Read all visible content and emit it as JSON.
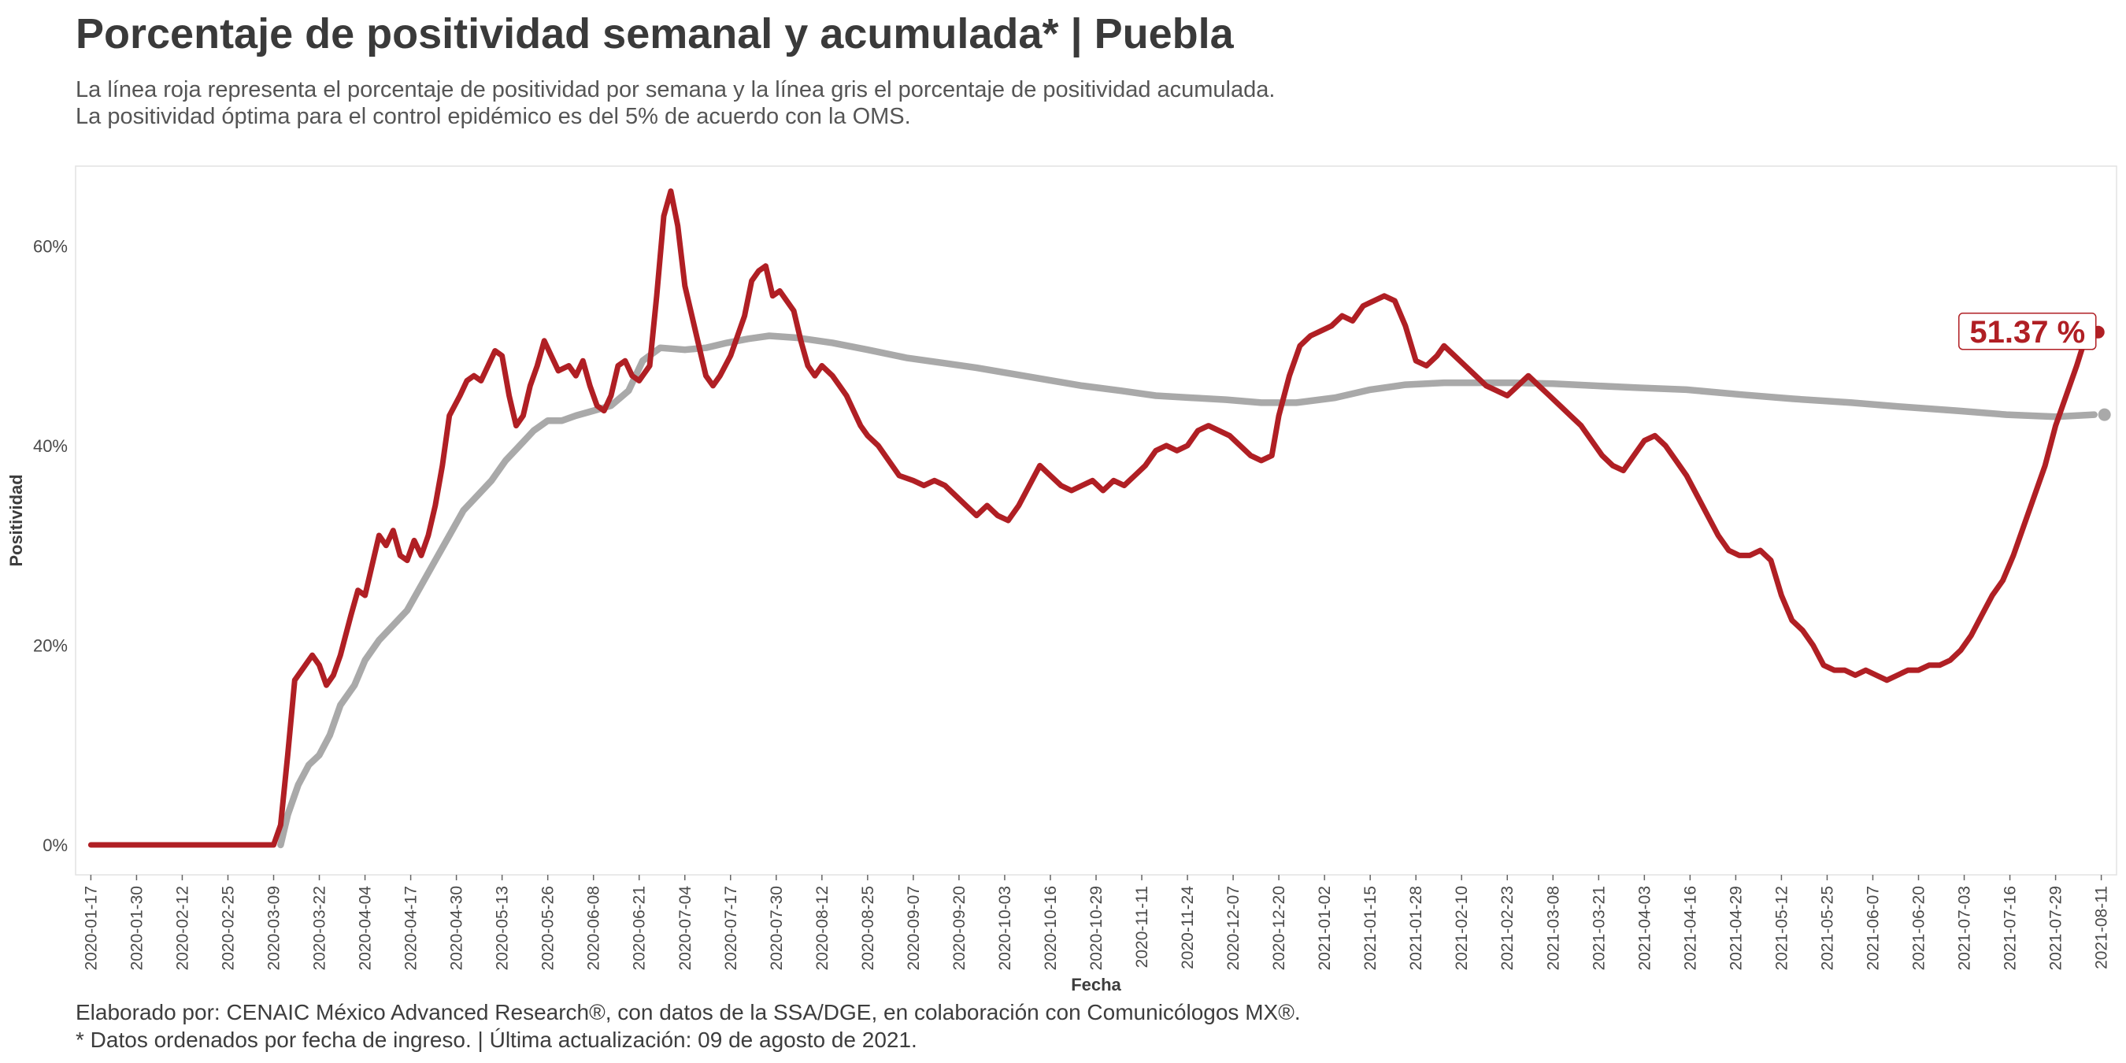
{
  "title": "Porcentaje de positividad semanal y acumulada* | Puebla",
  "subtitle_1": "La línea roja representa el porcentaje de positividad por semana y la línea gris el porcentaje de positividad acumulada.",
  "subtitle_2": "La positividad óptima para el control epidémico es del 5% de acuerdo con la OMS.",
  "caption_1": "Elaborado por: CENAIC México Advanced Research®, con datos de la SSA/DGE, en colaboración con Comunicólogos MX®.",
  "caption_2": "* Datos ordenados por fecha de ingreso. | Última actualización: 09 de agosto de 2021.",
  "colors": {
    "weekly": "#b01f24",
    "cumulative": "#a9a9a9",
    "panel_border": "#e2e2e2"
  },
  "chart_data": {
    "type": "line",
    "xlabel": "Fecha",
    "ylabel": "Positividad",
    "x_range": [
      "2020-01-14",
      "2021-08-14"
    ],
    "ylim": [
      -3,
      68
    ],
    "y_ticks": [
      0,
      20,
      40,
      60
    ],
    "y_tick_labels": [
      "0%",
      "20%",
      "40%",
      "60%"
    ],
    "x_ticks": [
      "2020-01-17",
      "2020-01-30",
      "2020-02-12",
      "2020-02-25",
      "2020-03-09",
      "2020-03-22",
      "2020-04-04",
      "2020-04-17",
      "2020-04-30",
      "2020-05-13",
      "2020-05-26",
      "2020-06-08",
      "2020-06-21",
      "2020-07-04",
      "2020-07-17",
      "2020-07-30",
      "2020-08-12",
      "2020-08-25",
      "2020-09-07",
      "2020-09-20",
      "2020-10-03",
      "2020-10-16",
      "2020-10-29",
      "2020-11-11",
      "2020-11-24",
      "2020-12-07",
      "2020-12-20",
      "2021-01-02",
      "2021-01-15",
      "2021-01-28",
      "2021-02-10",
      "2021-02-23",
      "2021-03-08",
      "2021-03-21",
      "2021-04-03",
      "2021-04-16",
      "2021-04-29",
      "2021-05-12",
      "2021-05-25",
      "2021-06-07",
      "2021-06-20",
      "2021-07-03",
      "2021-07-16",
      "2021-07-29",
      "2021-08-11"
    ],
    "grid": false,
    "series": [
      {
        "key": "weekly",
        "points": [
          [
            "2020-01-17",
            0
          ],
          [
            "2020-03-09",
            0
          ],
          [
            "2020-03-11",
            2
          ],
          [
            "2020-03-13",
            9
          ],
          [
            "2020-03-15",
            16.5
          ],
          [
            "2020-03-18",
            18
          ],
          [
            "2020-03-20",
            19
          ],
          [
            "2020-03-22",
            18
          ],
          [
            "2020-03-24",
            16
          ],
          [
            "2020-03-26",
            17
          ],
          [
            "2020-03-28",
            19
          ],
          [
            "2020-03-31",
            23
          ],
          [
            "2020-04-02",
            25.5
          ],
          [
            "2020-04-04",
            25
          ],
          [
            "2020-04-06",
            28
          ],
          [
            "2020-04-08",
            31
          ],
          [
            "2020-04-10",
            30
          ],
          [
            "2020-04-12",
            31.5
          ],
          [
            "2020-04-14",
            29
          ],
          [
            "2020-04-16",
            28.5
          ],
          [
            "2020-04-18",
            30.5
          ],
          [
            "2020-04-20",
            29
          ],
          [
            "2020-04-22",
            31
          ],
          [
            "2020-04-24",
            34
          ],
          [
            "2020-04-26",
            38
          ],
          [
            "2020-04-28",
            43
          ],
          [
            "2020-05-01",
            45
          ],
          [
            "2020-05-03",
            46.5
          ],
          [
            "2020-05-05",
            47
          ],
          [
            "2020-05-07",
            46.5
          ],
          [
            "2020-05-09",
            48
          ],
          [
            "2020-05-11",
            49.5
          ],
          [
            "2020-05-13",
            49
          ],
          [
            "2020-05-15",
            45
          ],
          [
            "2020-05-17",
            42
          ],
          [
            "2020-05-19",
            43
          ],
          [
            "2020-05-21",
            46
          ],
          [
            "2020-05-23",
            48
          ],
          [
            "2020-05-25",
            50.5
          ],
          [
            "2020-05-27",
            49
          ],
          [
            "2020-05-29",
            47.5
          ],
          [
            "2020-06-01",
            48
          ],
          [
            "2020-06-03",
            47
          ],
          [
            "2020-06-05",
            48.5
          ],
          [
            "2020-06-07",
            46
          ],
          [
            "2020-06-09",
            44
          ],
          [
            "2020-06-11",
            43.5
          ],
          [
            "2020-06-13",
            45
          ],
          [
            "2020-06-15",
            48
          ],
          [
            "2020-06-17",
            48.5
          ],
          [
            "2020-06-19",
            47
          ],
          [
            "2020-06-21",
            46.5
          ],
          [
            "2020-06-24",
            48
          ],
          [
            "2020-06-26",
            55
          ],
          [
            "2020-06-28",
            63
          ],
          [
            "2020-06-30",
            65.5
          ],
          [
            "2020-07-02",
            62
          ],
          [
            "2020-07-04",
            56
          ],
          [
            "2020-07-06",
            53
          ],
          [
            "2020-07-08",
            50
          ],
          [
            "2020-07-10",
            47
          ],
          [
            "2020-07-12",
            46
          ],
          [
            "2020-07-14",
            47
          ],
          [
            "2020-07-17",
            49
          ],
          [
            "2020-07-19",
            51
          ],
          [
            "2020-07-21",
            53
          ],
          [
            "2020-07-23",
            56.5
          ],
          [
            "2020-07-25",
            57.5
          ],
          [
            "2020-07-27",
            58
          ],
          [
            "2020-07-29",
            55
          ],
          [
            "2020-07-31",
            55.5
          ],
          [
            "2020-08-02",
            54.5
          ],
          [
            "2020-08-04",
            53.5
          ],
          [
            "2020-08-06",
            50.5
          ],
          [
            "2020-08-08",
            48
          ],
          [
            "2020-08-10",
            47
          ],
          [
            "2020-08-12",
            48
          ],
          [
            "2020-08-15",
            47
          ],
          [
            "2020-08-17",
            46
          ],
          [
            "2020-08-19",
            45
          ],
          [
            "2020-08-21",
            43.5
          ],
          [
            "2020-08-23",
            42
          ],
          [
            "2020-08-25",
            41
          ],
          [
            "2020-08-28",
            40
          ],
          [
            "2020-08-31",
            38.5
          ],
          [
            "2020-09-03",
            37
          ],
          [
            "2020-09-07",
            36.5
          ],
          [
            "2020-09-10",
            36
          ],
          [
            "2020-09-13",
            36.5
          ],
          [
            "2020-09-16",
            36
          ],
          [
            "2020-09-19",
            35
          ],
          [
            "2020-09-22",
            34
          ],
          [
            "2020-09-25",
            33
          ],
          [
            "2020-09-28",
            34
          ],
          [
            "2020-10-01",
            33
          ],
          [
            "2020-10-04",
            32.5
          ],
          [
            "2020-10-07",
            34
          ],
          [
            "2020-10-10",
            36
          ],
          [
            "2020-10-13",
            38
          ],
          [
            "2020-10-16",
            37
          ],
          [
            "2020-10-19",
            36
          ],
          [
            "2020-10-22",
            35.5
          ],
          [
            "2020-10-25",
            36
          ],
          [
            "2020-10-28",
            36.5
          ],
          [
            "2020-10-31",
            35.5
          ],
          [
            "2020-11-03",
            36.5
          ],
          [
            "2020-11-06",
            36
          ],
          [
            "2020-11-09",
            37
          ],
          [
            "2020-11-12",
            38
          ],
          [
            "2020-11-15",
            39.5
          ],
          [
            "2020-11-18",
            40
          ],
          [
            "2020-11-21",
            39.5
          ],
          [
            "2020-11-24",
            40
          ],
          [
            "2020-11-27",
            41.5
          ],
          [
            "2020-11-30",
            42
          ],
          [
            "2020-12-03",
            41.5
          ],
          [
            "2020-12-06",
            41
          ],
          [
            "2020-12-09",
            40
          ],
          [
            "2020-12-12",
            39
          ],
          [
            "2020-12-15",
            38.5
          ],
          [
            "2020-12-18",
            39
          ],
          [
            "2020-12-20",
            43
          ],
          [
            "2020-12-23",
            47
          ],
          [
            "2020-12-26",
            50
          ],
          [
            "2020-12-29",
            51
          ],
          [
            "2021-01-01",
            51.5
          ],
          [
            "2021-01-04",
            52
          ],
          [
            "2021-01-07",
            53
          ],
          [
            "2021-01-10",
            52.5
          ],
          [
            "2021-01-13",
            54
          ],
          [
            "2021-01-16",
            54.5
          ],
          [
            "2021-01-19",
            55
          ],
          [
            "2021-01-22",
            54.5
          ],
          [
            "2021-01-25",
            52
          ],
          [
            "2021-01-28",
            48.5
          ],
          [
            "2021-01-31",
            48
          ],
          [
            "2021-02-03",
            49
          ],
          [
            "2021-02-05",
            50
          ],
          [
            "2021-02-08",
            49
          ],
          [
            "2021-02-11",
            48
          ],
          [
            "2021-02-14",
            47
          ],
          [
            "2021-02-17",
            46
          ],
          [
            "2021-02-20",
            45.5
          ],
          [
            "2021-02-23",
            45
          ],
          [
            "2021-02-26",
            46
          ],
          [
            "2021-03-01",
            47
          ],
          [
            "2021-03-04",
            46
          ],
          [
            "2021-03-07",
            45
          ],
          [
            "2021-03-10",
            44
          ],
          [
            "2021-03-13",
            43
          ],
          [
            "2021-03-16",
            42
          ],
          [
            "2021-03-19",
            40.5
          ],
          [
            "2021-03-22",
            39
          ],
          [
            "2021-03-25",
            38
          ],
          [
            "2021-03-28",
            37.5
          ],
          [
            "2021-03-31",
            39
          ],
          [
            "2021-04-03",
            40.5
          ],
          [
            "2021-04-06",
            41
          ],
          [
            "2021-04-09",
            40
          ],
          [
            "2021-04-12",
            38.5
          ],
          [
            "2021-04-15",
            37
          ],
          [
            "2021-04-18",
            35
          ],
          [
            "2021-04-21",
            33
          ],
          [
            "2021-04-24",
            31
          ],
          [
            "2021-04-27",
            29.5
          ],
          [
            "2021-04-30",
            29
          ],
          [
            "2021-05-03",
            29
          ],
          [
            "2021-05-06",
            29.5
          ],
          [
            "2021-05-09",
            28.5
          ],
          [
            "2021-05-12",
            25
          ],
          [
            "2021-05-15",
            22.5
          ],
          [
            "2021-05-18",
            21.5
          ],
          [
            "2021-05-21",
            20
          ],
          [
            "2021-05-24",
            18
          ],
          [
            "2021-05-27",
            17.5
          ],
          [
            "2021-05-30",
            17.5
          ],
          [
            "2021-06-02",
            17
          ],
          [
            "2021-06-05",
            17.5
          ],
          [
            "2021-06-08",
            17
          ],
          [
            "2021-06-11",
            16.5
          ],
          [
            "2021-06-14",
            17
          ],
          [
            "2021-06-17",
            17.5
          ],
          [
            "2021-06-20",
            17.5
          ],
          [
            "2021-06-23",
            18
          ],
          [
            "2021-06-26",
            18
          ],
          [
            "2021-06-29",
            18.5
          ],
          [
            "2021-07-02",
            19.5
          ],
          [
            "2021-07-05",
            21
          ],
          [
            "2021-07-08",
            23
          ],
          [
            "2021-07-11",
            25
          ],
          [
            "2021-07-14",
            26.5
          ],
          [
            "2021-07-17",
            29
          ],
          [
            "2021-07-20",
            32
          ],
          [
            "2021-07-23",
            35
          ],
          [
            "2021-07-26",
            38
          ],
          [
            "2021-07-29",
            42
          ],
          [
            "2021-08-01",
            45
          ],
          [
            "2021-08-04",
            48
          ],
          [
            "2021-08-07",
            51.37
          ]
        ]
      },
      {
        "key": "cumulative",
        "points": [
          [
            "2020-03-11",
            0
          ],
          [
            "2020-03-13",
            3
          ],
          [
            "2020-03-16",
            6
          ],
          [
            "2020-03-19",
            8
          ],
          [
            "2020-03-22",
            9
          ],
          [
            "2020-03-25",
            11
          ],
          [
            "2020-03-28",
            14
          ],
          [
            "2020-04-01",
            16
          ],
          [
            "2020-04-04",
            18.5
          ],
          [
            "2020-04-08",
            20.5
          ],
          [
            "2020-04-12",
            22
          ],
          [
            "2020-04-16",
            23.5
          ],
          [
            "2020-04-20",
            26
          ],
          [
            "2020-04-24",
            28.5
          ],
          [
            "2020-04-28",
            31
          ],
          [
            "2020-05-02",
            33.5
          ],
          [
            "2020-05-06",
            35
          ],
          [
            "2020-05-10",
            36.5
          ],
          [
            "2020-05-14",
            38.5
          ],
          [
            "2020-05-18",
            40
          ],
          [
            "2020-05-22",
            41.5
          ],
          [
            "2020-05-26",
            42.5
          ],
          [
            "2020-05-30",
            42.5
          ],
          [
            "2020-06-03",
            43
          ],
          [
            "2020-06-08",
            43.5
          ],
          [
            "2020-06-13",
            44
          ],
          [
            "2020-06-18",
            45.5
          ],
          [
            "2020-06-22",
            48.5
          ],
          [
            "2020-06-27",
            49.8
          ],
          [
            "2020-07-04",
            49.6
          ],
          [
            "2020-07-10",
            49.8
          ],
          [
            "2020-07-16",
            50.3
          ],
          [
            "2020-07-22",
            50.7
          ],
          [
            "2020-07-28",
            51
          ],
          [
            "2020-08-05",
            50.8
          ],
          [
            "2020-08-15",
            50.3
          ],
          [
            "2020-08-25",
            49.6
          ],
          [
            "2020-09-05",
            48.8
          ],
          [
            "2020-09-15",
            48.3
          ],
          [
            "2020-09-25",
            47.8
          ],
          [
            "2020-10-05",
            47.2
          ],
          [
            "2020-10-15",
            46.6
          ],
          [
            "2020-10-25",
            46
          ],
          [
            "2020-11-05",
            45.5
          ],
          [
            "2020-11-15",
            45
          ],
          [
            "2020-11-25",
            44.8
          ],
          [
            "2020-12-05",
            44.6
          ],
          [
            "2020-12-15",
            44.3
          ],
          [
            "2020-12-25",
            44.3
          ],
          [
            "2021-01-05",
            44.8
          ],
          [
            "2021-01-15",
            45.6
          ],
          [
            "2021-01-25",
            46.1
          ],
          [
            "2021-02-05",
            46.3
          ],
          [
            "2021-02-15",
            46.3
          ],
          [
            "2021-02-25",
            46.3
          ],
          [
            "2021-03-08",
            46.2
          ],
          [
            "2021-03-20",
            46
          ],
          [
            "2021-04-01",
            45.8
          ],
          [
            "2021-04-15",
            45.6
          ],
          [
            "2021-05-01",
            45.1
          ],
          [
            "2021-05-15",
            44.7
          ],
          [
            "2021-06-01",
            44.3
          ],
          [
            "2021-06-15",
            43.9
          ],
          [
            "2021-07-01",
            43.5
          ],
          [
            "2021-07-15",
            43.1
          ],
          [
            "2021-07-29",
            42.9
          ],
          [
            "2021-08-09",
            43.1
          ]
        ]
      }
    ],
    "annotation": {
      "text": "51.37 %",
      "date": "2021-08-07",
      "value": 51.37
    }
  }
}
